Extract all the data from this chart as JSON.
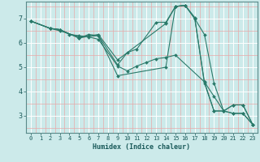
{
  "xlabel": "Humidex (Indice chaleur)",
  "bg_color": "#cceaea",
  "line_color": "#2a7a6a",
  "xlim": [
    -0.5,
    23.5
  ],
  "ylim": [
    2.3,
    7.7
  ],
  "xticks": [
    0,
    1,
    2,
    3,
    4,
    5,
    6,
    7,
    8,
    9,
    10,
    11,
    12,
    13,
    14,
    15,
    16,
    17,
    18,
    19,
    20,
    21,
    22,
    23
  ],
  "yticks": [
    3,
    4,
    5,
    6,
    7
  ],
  "lines": [
    {
      "x": [
        0,
        2,
        3,
        4,
        5,
        6,
        7,
        9,
        10,
        11,
        12,
        13,
        14,
        15,
        18,
        19,
        20,
        21,
        22,
        23
      ],
      "y": [
        6.9,
        6.6,
        6.55,
        6.35,
        6.3,
        6.25,
        6.15,
        5.05,
        4.85,
        5.05,
        5.2,
        5.35,
        5.4,
        5.5,
        4.4,
        3.8,
        3.2,
        3.1,
        3.1,
        2.65
      ]
    },
    {
      "x": [
        0,
        2,
        3,
        5,
        7,
        9,
        10,
        11,
        13,
        14,
        15,
        16,
        17,
        18,
        19,
        20,
        21,
        22,
        23
      ],
      "y": [
        6.9,
        6.6,
        6.5,
        6.25,
        6.3,
        5.1,
        5.6,
        5.75,
        6.85,
        6.85,
        7.5,
        7.55,
        7.0,
        6.35,
        4.35,
        3.2,
        3.1,
        3.1,
        2.65
      ]
    },
    {
      "x": [
        0,
        2,
        3,
        5,
        7,
        9,
        14,
        15,
        16,
        17,
        18,
        19,
        20,
        21,
        22,
        23
      ],
      "y": [
        6.9,
        6.6,
        6.55,
        6.2,
        6.35,
        5.3,
        6.8,
        7.5,
        7.55,
        7.0,
        4.4,
        3.2,
        3.2,
        3.45,
        3.45,
        2.65
      ]
    },
    {
      "x": [
        0,
        2,
        3,
        5,
        6,
        7,
        9,
        14,
        15,
        16,
        17,
        18,
        19,
        20,
        21,
        22,
        23
      ],
      "y": [
        6.9,
        6.6,
        6.55,
        6.2,
        6.35,
        6.3,
        4.65,
        5.0,
        7.5,
        7.55,
        7.05,
        4.35,
        3.2,
        3.2,
        3.45,
        3.45,
        2.65
      ]
    }
  ]
}
